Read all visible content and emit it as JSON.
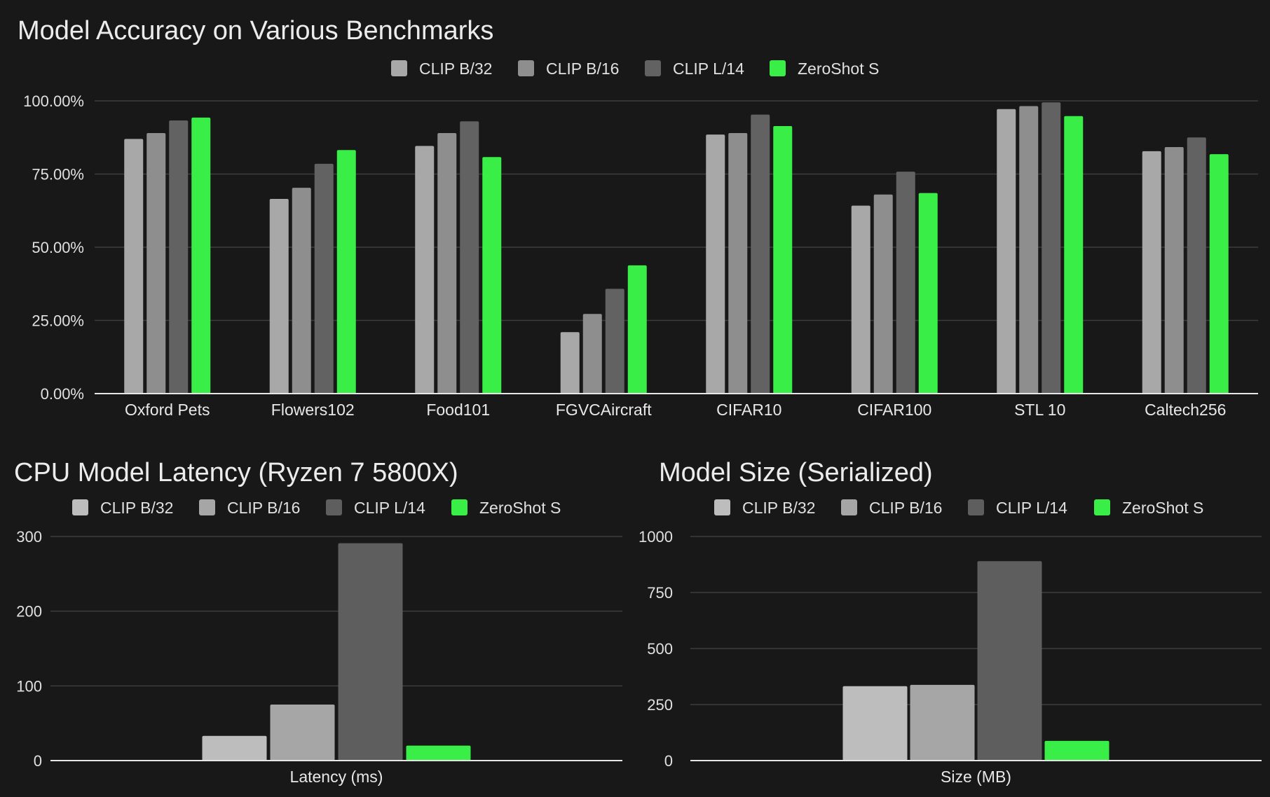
{
  "chart_data": [
    {
      "type": "bar",
      "title": "Model Accuracy on Various Benchmarks",
      "categories": [
        "Oxford Pets",
        "Flowers102",
        "Food101",
        "FGVCAircraft",
        "CIFAR10",
        "CIFAR100",
        "STL 10",
        "Caltech256"
      ],
      "series": [
        {
          "name": "CLIP B/32",
          "color": "#a8a8a8",
          "values": [
            87.0,
            66.5,
            84.6,
            21.0,
            88.5,
            64.2,
            97.2,
            82.8
          ]
        },
        {
          "name": "CLIP B/16",
          "color": "#8e8e8e",
          "values": [
            89.0,
            70.3,
            89.0,
            27.2,
            89.0,
            68.0,
            98.2,
            84.2
          ]
        },
        {
          "name": "CLIP L/14",
          "color": "#626262",
          "values": [
            93.3,
            78.5,
            93.0,
            35.8,
            95.3,
            75.8,
            99.5,
            87.5
          ]
        },
        {
          "name": "ZeroShot S",
          "color": "#38ee47",
          "values": [
            94.3,
            83.2,
            80.8,
            43.8,
            91.4,
            68.5,
            94.8,
            81.8
          ]
        }
      ],
      "ylim": [
        0,
        100
      ],
      "yticks": [
        0,
        25,
        50,
        75,
        100
      ],
      "ytick_labels": [
        "0.00%",
        "25.00%",
        "50.00%",
        "75.00%",
        "100.00%"
      ],
      "xlabel": "",
      "ylabel": "",
      "grid": true,
      "legend": "top-center"
    },
    {
      "type": "bar",
      "title": "CPU Model Latency (Ryzen 7 5800X)",
      "categories": [
        "Latency (ms)"
      ],
      "series": [
        {
          "name": "CLIP B/32",
          "color": "#bdbdbd",
          "values": [
            33
          ]
        },
        {
          "name": "CLIP B/16",
          "color": "#a6a6a6",
          "values": [
            75
          ]
        },
        {
          "name": "CLIP L/14",
          "color": "#5e5e5e",
          "values": [
            291
          ]
        },
        {
          "name": "ZeroShot S",
          "color": "#38ee47",
          "values": [
            20
          ]
        }
      ],
      "ylim": [
        0,
        300
      ],
      "yticks": [
        0,
        100,
        200,
        300
      ],
      "ytick_labels": [
        "0",
        "100",
        "200",
        "300"
      ],
      "xlabel": "Latency (ms)",
      "grid": true,
      "legend": "top-center"
    },
    {
      "type": "bar",
      "title": "Model Size (Serialized)",
      "categories": [
        "Size (MB)"
      ],
      "series": [
        {
          "name": "CLIP B/32",
          "color": "#bdbdbd",
          "values": [
            332
          ]
        },
        {
          "name": "CLIP B/16",
          "color": "#a6a6a6",
          "values": [
            338
          ]
        },
        {
          "name": "CLIP L/14",
          "color": "#5e5e5e",
          "values": [
            890
          ]
        },
        {
          "name": "ZeroShot S",
          "color": "#38ee47",
          "values": [
            88
          ]
        }
      ],
      "ylim": [
        0,
        1000
      ],
      "yticks": [
        0,
        250,
        500,
        750,
        1000
      ],
      "ytick_labels": [
        "0",
        "250",
        "500",
        "750",
        "1000"
      ],
      "xlabel": "Size (MB)",
      "grid": true,
      "legend": "top-center"
    }
  ]
}
